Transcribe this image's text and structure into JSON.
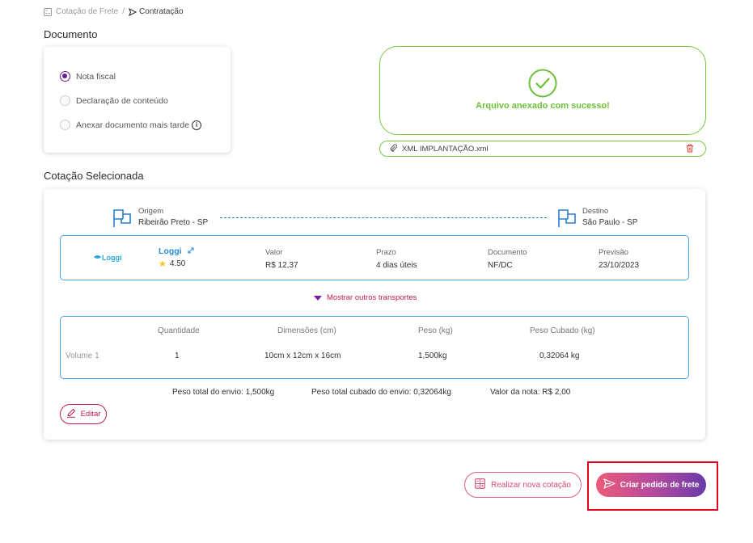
{
  "breadcrumb": {
    "parent": "Cotação de Frete",
    "separator": "/",
    "current": "Contratação"
  },
  "documento": {
    "title": "Documento",
    "options": [
      {
        "label": "Nota fiscal",
        "checked": true
      },
      {
        "label": "Declaração de conteúdo",
        "checked": false
      },
      {
        "label": "Anexar documento mais tarde",
        "checked": false
      }
    ],
    "info_glyph": "i"
  },
  "upload": {
    "success_message": "Arquivo anexado com sucesso!",
    "file_name": "XML IMPLANTAÇÃO.xml"
  },
  "cotacao": {
    "title": "Cotação Selecionada",
    "origem_label": "Origem",
    "origem_value": "Ribeirão Preto - SP",
    "destino_label": "Destino",
    "destino_value": "São Paulo - SP",
    "carrier": {
      "logo_text": "Loggi",
      "name": "Loggi",
      "rating": "4.50",
      "valor_label": "Valor",
      "valor": "R$ 12,37",
      "prazo_label": "Prazo",
      "prazo": "4 dias úteis",
      "documento_label": "Documento",
      "documento": "NF/DC",
      "previsao_label": "Previsão",
      "previsao": "23/10/2023"
    },
    "more_transports": "Mostrar outros transportes",
    "volumes": {
      "headers": [
        "Quantidade",
        "Dimensões (cm)",
        "Peso (kg)",
        "Peso Cubado (kg)"
      ],
      "rows": [
        {
          "label": "Volume 1",
          "quantidade": "1",
          "dimensoes": "10cm x 12cm x 16cm",
          "peso": "1,500kg",
          "peso_cubado": "0,32064 kg"
        }
      ]
    },
    "totals": {
      "peso_total": "Peso total do envio: 1,500kg",
      "peso_cubado_total": "Peso total cubado do envio: 0,32064kg",
      "valor_nota": "Valor da nota: R$ 2,00"
    },
    "edit_label": "Editar"
  },
  "actions": {
    "new_quote": "Realizar nova cotação",
    "create_order": "Criar pedido de frete"
  },
  "colors": {
    "success": "#7ac943",
    "primary_purple": "#6a1b9a",
    "accent_pink": "#c2185b",
    "info_blue": "#4aa3df",
    "highlight_red": "#e3001b"
  }
}
